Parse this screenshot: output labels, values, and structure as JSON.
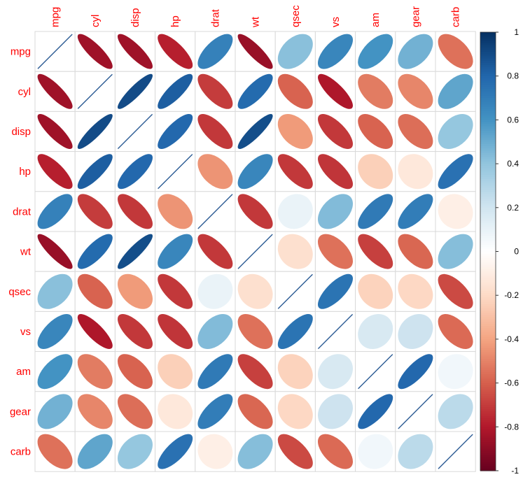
{
  "chart_data": {
    "type": "heatmap",
    "style": "ellipse correlogram",
    "variables": [
      "mpg",
      "cyl",
      "disp",
      "hp",
      "drat",
      "wt",
      "qsec",
      "vs",
      "am",
      "gear",
      "carb"
    ],
    "matrix": [
      [
        1.0,
        -0.85,
        -0.85,
        -0.78,
        0.68,
        -0.87,
        0.42,
        0.66,
        0.6,
        0.48,
        -0.55
      ],
      [
        -0.85,
        1.0,
        0.9,
        0.83,
        -0.7,
        0.78,
        -0.59,
        -0.81,
        -0.52,
        -0.49,
        0.53
      ],
      [
        -0.85,
        0.9,
        1.0,
        0.79,
        -0.71,
        0.89,
        -0.43,
        -0.71,
        -0.59,
        -0.56,
        0.39
      ],
      [
        -0.78,
        0.83,
        0.79,
        1.0,
        -0.45,
        0.66,
        -0.71,
        -0.72,
        -0.24,
        -0.13,
        0.75
      ],
      [
        0.68,
        -0.7,
        -0.71,
        -0.45,
        1.0,
        -0.71,
        0.09,
        0.44,
        0.71,
        0.7,
        -0.09
      ],
      [
        -0.87,
        0.78,
        0.89,
        0.66,
        -0.71,
        1.0,
        -0.17,
        -0.55,
        -0.69,
        -0.58,
        0.43
      ],
      [
        0.42,
        -0.59,
        -0.43,
        -0.71,
        0.09,
        -0.17,
        1.0,
        0.74,
        -0.23,
        -0.21,
        -0.66
      ],
      [
        0.66,
        -0.81,
        -0.71,
        -0.72,
        0.44,
        -0.55,
        0.74,
        1.0,
        0.17,
        0.21,
        -0.57
      ],
      [
        0.6,
        -0.52,
        -0.59,
        -0.24,
        0.71,
        -0.69,
        -0.23,
        0.17,
        1.0,
        0.79,
        0.06
      ],
      [
        0.48,
        -0.49,
        -0.56,
        -0.13,
        0.7,
        -0.58,
        -0.21,
        0.21,
        0.79,
        1.0,
        0.27
      ],
      [
        -0.55,
        0.53,
        0.39,
        0.75,
        -0.09,
        0.43,
        -0.66,
        -0.57,
        0.06,
        0.27,
        1.0
      ]
    ],
    "colorbar": {
      "ticks": [
        "1",
        "0.8",
        "0.6",
        "0.4",
        "0.2",
        "0",
        "-0.2",
        "-0.4",
        "-0.6",
        "-0.8",
        "-1"
      ],
      "range": [
        -1,
        1
      ]
    },
    "label_color": "#FF0000",
    "colors": {
      "neg_strong": "#67001F",
      "neg_mid": "#D6604D",
      "neutral": "#FFFFFF",
      "pos_mid": "#4393C3",
      "pos_strong": "#053061"
    }
  }
}
